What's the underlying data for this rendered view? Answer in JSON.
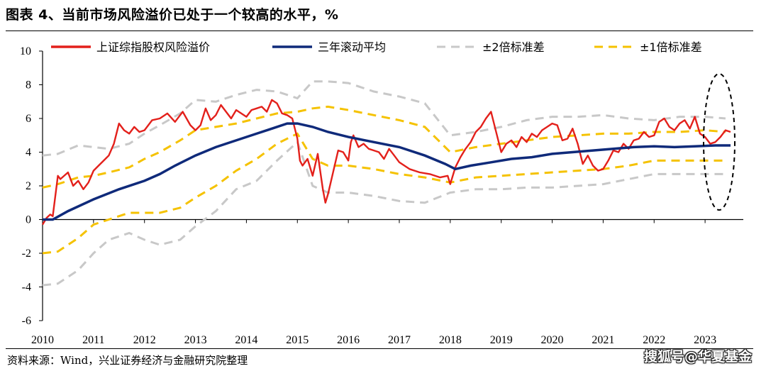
{
  "figure_title": "图表 4、当前市场风险溢价已处于一个较高的水平，%",
  "source_note": "资料来源：Wind，兴业证券经济与金融研究院整理",
  "watermark": "搜狐号@华夏基金",
  "colors": {
    "premium": "#e3201b",
    "rolling_mean": "#0f2a7a",
    "two_sd": "#c8c8c8",
    "one_sd": "#f5c200"
  },
  "chart_data": {
    "type": "line",
    "title": "",
    "xlabel": "",
    "ylabel": "",
    "xlim": [
      2010.0,
      2023.75
    ],
    "ylim": [
      -6,
      10
    ],
    "yticks": [
      -6,
      -4,
      -2,
      0,
      2,
      4,
      6,
      8,
      10
    ],
    "xtick_labels": [
      "2010",
      "2011",
      "2012",
      "2013",
      "2014",
      "2015",
      "2016",
      "2017",
      "2018",
      "2019",
      "2020",
      "2021",
      "2022",
      "2023"
    ],
    "legend_position": "top",
    "annotation": "dashed ellipse around latest readings (2023)",
    "series": [
      {
        "name": "上证综指股权风险溢价",
        "style": "solid-thin",
        "x": [
          2010.0,
          2010.08,
          2010.15,
          2010.2,
          2010.3,
          2010.35,
          2010.5,
          2010.6,
          2010.7,
          2010.8,
          2010.9,
          2011.0,
          2011.1,
          2011.2,
          2011.3,
          2011.4,
          2011.5,
          2011.6,
          2011.7,
          2011.8,
          2011.9,
          2012.0,
          2012.15,
          2012.3,
          2012.45,
          2012.6,
          2012.75,
          2012.9,
          2013.0,
          2013.1,
          2013.2,
          2013.3,
          2013.4,
          2013.5,
          2013.6,
          2013.7,
          2013.8,
          2013.9,
          2014.0,
          2014.1,
          2014.2,
          2014.3,
          2014.4,
          2014.5,
          2014.6,
          2014.7,
          2014.8,
          2014.9,
          2015.0,
          2015.05,
          2015.1,
          2015.2,
          2015.3,
          2015.4,
          2015.5,
          2015.55,
          2015.6,
          2015.7,
          2015.8,
          2015.9,
          2016.0,
          2016.05,
          2016.1,
          2016.2,
          2016.3,
          2016.4,
          2016.5,
          2016.6,
          2016.7,
          2016.8,
          2016.9,
          2017.0,
          2017.2,
          2017.4,
          2017.6,
          2017.8,
          2017.95,
          2018.0,
          2018.1,
          2018.2,
          2018.3,
          2018.4,
          2018.5,
          2018.6,
          2018.7,
          2018.8,
          2018.9,
          2019.0,
          2019.1,
          2019.2,
          2019.3,
          2019.4,
          2019.5,
          2019.6,
          2019.7,
          2019.8,
          2019.9,
          2020.0,
          2020.1,
          2020.2,
          2020.3,
          2020.4,
          2020.5,
          2020.6,
          2020.7,
          2020.8,
          2020.9,
          2021.0,
          2021.1,
          2021.2,
          2021.3,
          2021.4,
          2021.5,
          2021.6,
          2021.7,
          2021.8,
          2021.9,
          2022.0,
          2022.1,
          2022.2,
          2022.3,
          2022.4,
          2022.5,
          2022.6,
          2022.7,
          2022.8,
          2022.9,
          2023.0,
          2023.1,
          2023.2,
          2023.3,
          2023.4,
          2023.5
        ],
        "values": [
          -0.3,
          0.1,
          0.3,
          0.2,
          2.6,
          2.4,
          2.8,
          2.0,
          2.3,
          1.8,
          2.2,
          2.9,
          3.2,
          3.5,
          3.8,
          4.5,
          5.7,
          5.3,
          5.1,
          5.5,
          5.2,
          5.3,
          5.9,
          6.0,
          6.3,
          5.8,
          6.4,
          5.6,
          5.3,
          5.6,
          6.6,
          5.9,
          6.2,
          6.8,
          6.4,
          6.0,
          6.5,
          6.3,
          6.1,
          6.5,
          6.6,
          6.7,
          6.4,
          7.1,
          6.9,
          6.3,
          6.2,
          6.0,
          4.8,
          3.5,
          3.2,
          3.6,
          2.6,
          3.9,
          1.8,
          1.0,
          1.5,
          2.8,
          4.1,
          4.0,
          3.5,
          4.6,
          5.0,
          4.3,
          4.5,
          4.2,
          4.1,
          4.0,
          3.6,
          4.2,
          3.8,
          3.4,
          3.0,
          2.8,
          2.7,
          2.5,
          2.6,
          2.1,
          3.1,
          3.7,
          4.2,
          4.6,
          5.2,
          5.5,
          6.0,
          6.4,
          5.2,
          4.0,
          4.5,
          4.7,
          4.3,
          4.9,
          4.6,
          5.1,
          4.9,
          5.3,
          5.5,
          5.7,
          5.6,
          4.7,
          4.8,
          5.4,
          4.5,
          3.3,
          3.8,
          3.2,
          2.9,
          3.0,
          3.5,
          4.1,
          4.0,
          4.5,
          4.2,
          4.7,
          4.8,
          5.2,
          4.9,
          5.0,
          5.8,
          6.0,
          5.5,
          5.3,
          5.7,
          5.9,
          5.4,
          6.1,
          5.1,
          4.9,
          4.5,
          4.6,
          4.9,
          5.3,
          5.2
        ]
      },
      {
        "name": "三年滚动平均",
        "style": "solid-thick",
        "x": [
          2010.0,
          2010.2,
          2010.5,
          2011.0,
          2011.5,
          2012.0,
          2012.3,
          2012.6,
          2013.0,
          2013.4,
          2013.8,
          2014.2,
          2014.5,
          2014.8,
          2015.0,
          2015.3,
          2015.6,
          2016.0,
          2016.5,
          2017.0,
          2017.5,
          2017.9,
          2018.1,
          2018.4,
          2018.8,
          2019.2,
          2019.6,
          2020.0,
          2020.4,
          2020.8,
          2021.2,
          2021.6,
          2022.0,
          2022.4,
          2022.8,
          2023.2,
          2023.5
        ],
        "values": [
          0.0,
          0.0,
          0.5,
          1.2,
          1.8,
          2.3,
          2.7,
          3.2,
          3.8,
          4.3,
          4.7,
          5.1,
          5.4,
          5.7,
          5.7,
          5.5,
          5.2,
          4.9,
          4.6,
          4.3,
          3.8,
          3.3,
          3.0,
          3.2,
          3.4,
          3.6,
          3.7,
          3.9,
          4.0,
          4.1,
          4.2,
          4.3,
          4.35,
          4.3,
          4.35,
          4.4,
          4.4
        ]
      },
      {
        "name": "±2倍标准差",
        "style": "dashed-gray",
        "bands": [
          {
            "x": [
              2010.0,
              2010.3,
              2010.7,
              2011.0,
              2011.3,
              2011.7,
              2012.0,
              2012.3,
              2012.7,
              2013.0,
              2013.4,
              2013.8,
              2014.2,
              2014.6,
              2015.0,
              2015.3,
              2015.6,
              2016.0,
              2016.5,
              2017.0,
              2017.5,
              2018.0,
              2018.5,
              2019.0,
              2019.5,
              2020.0,
              2020.5,
              2021.0,
              2021.5,
              2022.0,
              2022.5,
              2023.0,
              2023.4
            ],
            "values": [
              3.8,
              3.9,
              4.4,
              4.3,
              4.2,
              4.5,
              5.1,
              5.6,
              6.3,
              7.1,
              7.0,
              7.4,
              7.7,
              7.6,
              7.2,
              8.2,
              8.2,
              8.1,
              7.6,
              7.3,
              6.9,
              5.0,
              5.2,
              5.5,
              5.9,
              6.1,
              6.1,
              6.2,
              6.0,
              5.9,
              6.1,
              6.1,
              6.0
            ]
          },
          {
            "x": [
              2010.0,
              2010.3,
              2010.7,
              2011.0,
              2011.3,
              2011.7,
              2012.0,
              2012.3,
              2012.7,
              2013.0,
              2013.4,
              2013.8,
              2014.2,
              2014.6,
              2015.0,
              2015.3,
              2015.6,
              2016.0,
              2016.5,
              2017.0,
              2017.5,
              2018.0,
              2018.5,
              2019.0,
              2019.5,
              2020.0,
              2020.5,
              2021.0,
              2021.5,
              2022.0,
              2022.5,
              2023.0,
              2023.4
            ],
            "values": [
              -3.9,
              -3.8,
              -3.0,
              -2.0,
              -1.2,
              -0.8,
              -1.2,
              -1.5,
              -1.2,
              -0.4,
              0.5,
              1.8,
              2.3,
              3.5,
              4.6,
              2.0,
              1.6,
              1.6,
              1.4,
              1.1,
              1.0,
              1.6,
              1.8,
              1.8,
              1.9,
              1.9,
              2.0,
              2.1,
              2.4,
              2.7,
              2.7,
              2.7,
              2.7
            ]
          }
        ]
      },
      {
        "name": "±1倍标准差",
        "style": "dashed-yellow",
        "bands": [
          {
            "x": [
              2010.0,
              2010.3,
              2010.7,
              2011.0,
              2011.3,
              2011.7,
              2012.0,
              2012.3,
              2012.7,
              2013.0,
              2013.4,
              2013.8,
              2014.2,
              2014.6,
              2015.0,
              2015.3,
              2015.6,
              2016.0,
              2016.5,
              2017.0,
              2017.5,
              2018.0,
              2018.5,
              2019.0,
              2019.5,
              2020.0,
              2020.5,
              2021.0,
              2021.5,
              2022.0,
              2022.5,
              2023.0,
              2023.4
            ],
            "values": [
              1.9,
              2.1,
              2.5,
              2.6,
              2.8,
              3.1,
              3.6,
              4.0,
              4.7,
              5.3,
              5.5,
              5.7,
              6.0,
              6.3,
              6.4,
              6.6,
              6.7,
              6.5,
              6.2,
              5.9,
              5.5,
              4.0,
              4.3,
              4.5,
              4.7,
              4.9,
              5.0,
              5.1,
              5.1,
              5.2,
              5.2,
              5.3,
              5.2
            ]
          },
          {
            "x": [
              2010.0,
              2010.3,
              2010.7,
              2011.0,
              2011.3,
              2011.7,
              2012.0,
              2012.3,
              2012.7,
              2013.0,
              2013.4,
              2013.8,
              2014.2,
              2014.6,
              2015.0,
              2015.3,
              2015.6,
              2016.0,
              2016.5,
              2017.0,
              2017.5,
              2018.0,
              2018.5,
              2019.0,
              2019.5,
              2020.0,
              2020.5,
              2021.0,
              2021.5,
              2022.0,
              2022.5,
              2023.0,
              2023.4
            ],
            "values": [
              -2.0,
              -1.9,
              -1.1,
              -0.3,
              0.0,
              0.4,
              0.4,
              0.4,
              0.7,
              1.3,
              2.0,
              2.9,
              3.6,
              4.5,
              5.1,
              3.6,
              3.2,
              3.2,
              3.0,
              2.7,
              2.5,
              2.2,
              2.5,
              2.6,
              2.7,
              2.8,
              2.9,
              3.0,
              3.2,
              3.5,
              3.5,
              3.5,
              3.5
            ]
          }
        ]
      }
    ]
  }
}
